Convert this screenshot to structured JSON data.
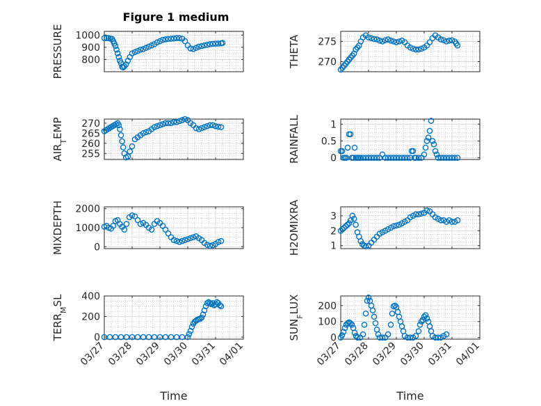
{
  "figure": {
    "title": "Figure 1 medium"
  },
  "colors": {
    "marker": "#0072BD",
    "axis": "#262626",
    "grid": "#b0b0b0"
  },
  "chart_data": [
    {
      "type": "scatter",
      "ylabel": "PRESSURE",
      "ylim": [
        700,
        1030
      ],
      "yticks": [
        800,
        900,
        1000
      ],
      "xlim": [
        0,
        5
      ],
      "xticks": [],
      "xlabel": "",
      "x": [
        0.0,
        0.08,
        0.15,
        0.22,
        0.28,
        0.32,
        0.36,
        0.4,
        0.44,
        0.48,
        0.52,
        0.56,
        0.6,
        0.64,
        0.68,
        0.72,
        0.78,
        0.85,
        0.92,
        1.0,
        1.1,
        1.2,
        1.3,
        1.4,
        1.5,
        1.6,
        1.7,
        1.8,
        1.9,
        2.0,
        2.1,
        2.2,
        2.3,
        2.4,
        2.5,
        2.6,
        2.7,
        2.8,
        2.9,
        3.0,
        3.1,
        3.2,
        3.3,
        3.4,
        3.5,
        3.6,
        3.7,
        3.8,
        3.9,
        4.0,
        4.1,
        4.2,
        4.25
      ],
      "y": [
        975,
        975,
        975,
        970,
        968,
        950,
        930,
        910,
        880,
        850,
        820,
        790,
        770,
        740,
        735,
        745,
        760,
        790,
        820,
        850,
        860,
        870,
        880,
        885,
        895,
        905,
        915,
        925,
        940,
        950,
        960,
        965,
        968,
        970,
        972,
        975,
        975,
        970,
        950,
        915,
        890,
        885,
        895,
        905,
        910,
        915,
        920,
        925,
        928,
        930,
        930,
        932,
        935
      ]
    },
    {
      "type": "scatter",
      "ylabel": "THETA",
      "ylim": [
        267.5,
        277.5
      ],
      "yticks": [
        270,
        275
      ],
      "xlim": [
        0,
        5
      ],
      "xticks": [],
      "xlabel": "",
      "x": [
        0.0,
        0.06,
        0.12,
        0.18,
        0.24,
        0.3,
        0.36,
        0.42,
        0.48,
        0.54,
        0.6,
        0.66,
        0.72,
        0.8,
        0.9,
        1.0,
        1.1,
        1.2,
        1.3,
        1.4,
        1.5,
        1.6,
        1.7,
        1.8,
        1.9,
        2.0,
        2.1,
        2.2,
        2.3,
        2.4,
        2.5,
        2.6,
        2.7,
        2.8,
        2.9,
        3.0,
        3.1,
        3.2,
        3.3,
        3.4,
        3.5,
        3.6,
        3.7,
        3.8,
        3.9,
        4.0,
        4.1,
        4.15,
        4.2
      ],
      "y": [
        268,
        268.5,
        269,
        269.5,
        270,
        270.5,
        271,
        271.5,
        272,
        273,
        273.5,
        274,
        275,
        276,
        276.5,
        276,
        275.8,
        275.6,
        275.5,
        275.2,
        275,
        275.3,
        275.5,
        275.2,
        275,
        274.8,
        275,
        275.2,
        274.8,
        274,
        273.5,
        273.2,
        273,
        273,
        273.2,
        273.5,
        274,
        274.8,
        275.8,
        276.5,
        276,
        275.5,
        275.3,
        275,
        275.2,
        275.3,
        275,
        274.5,
        274
      ]
    },
    {
      "type": "scatter",
      "ylabel": "AIR_TEMP",
      "ylim": [
        252,
        272
      ],
      "yticks": [
        255,
        260,
        265,
        270
      ],
      "xlim": [
        0,
        5
      ],
      "xticks": [],
      "xlabel": "",
      "x": [
        0.0,
        0.06,
        0.12,
        0.18,
        0.24,
        0.3,
        0.36,
        0.42,
        0.48,
        0.52,
        0.56,
        0.6,
        0.64,
        0.68,
        0.72,
        0.78,
        0.85,
        0.92,
        1.0,
        1.1,
        1.2,
        1.3,
        1.4,
        1.5,
        1.6,
        1.7,
        1.8,
        1.9,
        2.0,
        2.1,
        2.2,
        2.3,
        2.4,
        2.5,
        2.6,
        2.7,
        2.8,
        2.9,
        3.0,
        3.1,
        3.2,
        3.3,
        3.4,
        3.5,
        3.6,
        3.7,
        3.8,
        3.9,
        4.0,
        4.1,
        4.2
      ],
      "y": [
        266,
        266.5,
        267,
        267.5,
        268,
        268.5,
        269,
        269.5,
        270,
        269,
        267,
        264,
        261,
        258,
        255,
        253,
        253.5,
        256,
        258.5,
        262,
        263,
        264,
        265,
        265.5,
        266,
        267,
        268,
        268.5,
        269,
        269.5,
        270,
        270,
        270,
        270.5,
        270.5,
        271,
        271.5,
        272,
        271.5,
        270,
        269,
        267.5,
        267,
        267.5,
        268,
        268.5,
        269,
        269,
        268.5,
        268.2,
        268
      ]
    },
    {
      "type": "scatter",
      "ylabel": "RAINFALL",
      "ylim": [
        -0.05,
        1.15
      ],
      "yticks": [
        0,
        0.5,
        1
      ],
      "xlim": [
        0,
        5
      ],
      "xticks": [],
      "xlabel": "",
      "x": [
        0.0,
        0.05,
        0.1,
        0.15,
        0.2,
        0.25,
        0.3,
        0.35,
        0.4,
        0.45,
        0.5,
        0.55,
        0.6,
        0.65,
        0.7,
        0.8,
        0.9,
        1.0,
        1.1,
        1.2,
        1.3,
        1.4,
        1.5,
        1.6,
        1.7,
        1.8,
        1.9,
        2.0,
        2.1,
        2.2,
        2.3,
        2.4,
        2.5,
        2.55,
        2.6,
        2.65,
        2.7,
        2.8,
        2.9,
        3.0,
        3.05,
        3.1,
        3.15,
        3.2,
        3.25,
        3.3,
        3.35,
        3.4,
        3.45,
        3.5,
        3.6,
        3.7,
        3.8,
        3.9,
        4.0,
        4.1,
        4.2
      ],
      "y": [
        0.2,
        0.2,
        0.0,
        0.0,
        0.0,
        0.3,
        0.7,
        0.7,
        0.0,
        0.0,
        0.3,
        0.0,
        0.0,
        0.0,
        0.0,
        0.0,
        0.0,
        0.0,
        0.0,
        0.0,
        0.0,
        0.0,
        0.1,
        0.0,
        0.0,
        0.0,
        0.0,
        0.0,
        0.0,
        0.0,
        0.0,
        0.0,
        0.0,
        0.2,
        0.2,
        0.0,
        0.0,
        0.0,
        0.0,
        0.1,
        0.3,
        0.5,
        0.6,
        0.8,
        1.1,
        0.5,
        0.4,
        0.2,
        0.1,
        0.0,
        0.0,
        0.0,
        0.0,
        0.0,
        0.0,
        0.0,
        0.0
      ]
    },
    {
      "type": "scatter",
      "ylabel": "MIXDEPTH",
      "ylim": [
        -100,
        2100
      ],
      "yticks": [
        0,
        1000,
        2000
      ],
      "xlim": [
        0,
        5
      ],
      "xticks": [],
      "xlabel": "",
      "x": [
        0.0,
        0.08,
        0.16,
        0.24,
        0.32,
        0.4,
        0.48,
        0.56,
        0.64,
        0.72,
        0.8,
        0.9,
        1.0,
        1.1,
        1.2,
        1.3,
        1.4,
        1.5,
        1.6,
        1.7,
        1.8,
        1.9,
        2.0,
        2.1,
        2.2,
        2.3,
        2.4,
        2.5,
        2.6,
        2.7,
        2.8,
        2.9,
        3.0,
        3.1,
        3.2,
        3.3,
        3.4,
        3.5,
        3.6,
        3.7,
        3.8,
        3.9,
        4.0,
        4.1,
        4.2
      ],
      "y": [
        1050,
        1100,
        1000,
        950,
        1100,
        1350,
        1400,
        1200,
        1050,
        900,
        1200,
        1550,
        1650,
        1600,
        1400,
        1200,
        1250,
        1150,
        1000,
        900,
        1200,
        1350,
        1250,
        1100,
        900,
        700,
        500,
        350,
        300,
        250,
        300,
        350,
        400,
        450,
        500,
        550,
        450,
        350,
        200,
        100,
        50,
        80,
        150,
        250,
        300
      ]
    },
    {
      "type": "scatter",
      "ylabel": "H2OMIXRA",
      "ylim": [
        0.8,
        3.6
      ],
      "yticks": [
        1,
        2,
        3
      ],
      "xlim": [
        0,
        5
      ],
      "xticks": [],
      "xlabel": "",
      "x": [
        0.0,
        0.06,
        0.12,
        0.18,
        0.24,
        0.3,
        0.36,
        0.42,
        0.48,
        0.54,
        0.6,
        0.66,
        0.72,
        0.78,
        0.84,
        0.9,
        1.0,
        1.1,
        1.2,
        1.3,
        1.4,
        1.5,
        1.6,
        1.7,
        1.8,
        1.9,
        2.0,
        2.1,
        2.2,
        2.3,
        2.4,
        2.5,
        2.6,
        2.7,
        2.8,
        2.9,
        3.0,
        3.1,
        3.2,
        3.3,
        3.4,
        3.5,
        3.6,
        3.7,
        3.8,
        3.9,
        4.0,
        4.1,
        4.2
      ],
      "y": [
        2.0,
        2.1,
        2.2,
        2.3,
        2.4,
        2.5,
        2.7,
        3.0,
        2.8,
        2.4,
        1.9,
        1.6,
        1.3,
        1.1,
        1.0,
        0.95,
        1.0,
        1.2,
        1.4,
        1.6,
        1.8,
        1.9,
        2.0,
        2.1,
        2.2,
        2.3,
        2.35,
        2.4,
        2.5,
        2.6,
        2.7,
        2.9,
        3.0,
        3.1,
        3.1,
        3.15,
        3.2,
        3.35,
        3.3,
        3.1,
        2.9,
        2.8,
        2.7,
        2.7,
        2.6,
        2.7,
        2.6,
        2.6,
        2.7
      ]
    },
    {
      "type": "scatter",
      "ylabel": "TERR_MSL",
      "ylim": [
        -20,
        400
      ],
      "yticks": [
        0,
        200,
        400
      ],
      "xlim": [
        0,
        5
      ],
      "xticks": [
        "03/27",
        "03/28",
        "03/29",
        "03/30",
        "03/31",
        "04/01"
      ],
      "xlabel": "Time",
      "x": [
        0.0,
        0.2,
        0.4,
        0.6,
        0.8,
        1.0,
        1.2,
        1.4,
        1.6,
        1.8,
        2.0,
        2.2,
        2.4,
        2.6,
        2.8,
        3.0,
        3.05,
        3.1,
        3.15,
        3.2,
        3.25,
        3.3,
        3.35,
        3.4,
        3.45,
        3.5,
        3.55,
        3.6,
        3.65,
        3.7,
        3.75,
        3.8,
        3.85,
        3.9,
        3.95,
        4.0,
        4.05,
        4.1,
        4.15,
        4.2
      ],
      "y": [
        0,
        0,
        0,
        0,
        0,
        0,
        0,
        0,
        0,
        0,
        0,
        0,
        0,
        0,
        0,
        0,
        30,
        60,
        100,
        130,
        150,
        160,
        170,
        175,
        180,
        190,
        220,
        260,
        300,
        330,
        340,
        330,
        320,
        330,
        310,
        320,
        340,
        330,
        310,
        300
      ]
    },
    {
      "type": "scatter",
      "ylabel": "SUN_FLUX",
      "ylim": [
        -10,
        260
      ],
      "yticks": [
        0,
        100,
        200
      ],
      "xlim": [
        0,
        5
      ],
      "xticks": [
        "03/27",
        "03/28",
        "03/29",
        "03/30",
        "03/31",
        "04/01"
      ],
      "xlabel": "Time",
      "x": [
        0.0,
        0.05,
        0.1,
        0.15,
        0.2,
        0.25,
        0.3,
        0.35,
        0.4,
        0.45,
        0.5,
        0.55,
        0.6,
        0.7,
        0.8,
        0.85,
        0.9,
        0.95,
        1.0,
        1.05,
        1.1,
        1.15,
        1.2,
        1.25,
        1.3,
        1.35,
        1.4,
        1.5,
        1.6,
        1.7,
        1.8,
        1.85,
        1.9,
        1.95,
        2.0,
        2.05,
        2.1,
        2.15,
        2.2,
        2.25,
        2.3,
        2.4,
        2.5,
        2.6,
        2.7,
        2.8,
        2.85,
        2.9,
        2.95,
        3.0,
        3.05,
        3.1,
        3.15,
        3.2,
        3.25,
        3.3,
        3.4,
        3.5,
        3.6,
        3.7,
        3.8
      ],
      "y": [
        0,
        15,
        35,
        60,
        80,
        90,
        95,
        90,
        80,
        60,
        30,
        10,
        0,
        0,
        20,
        80,
        150,
        230,
        250,
        230,
        200,
        170,
        130,
        90,
        50,
        20,
        0,
        0,
        0,
        20,
        80,
        150,
        195,
        200,
        190,
        160,
        130,
        100,
        70,
        40,
        10,
        0,
        0,
        0,
        10,
        40,
        80,
        100,
        110,
        130,
        140,
        120,
        100,
        70,
        40,
        10,
        0,
        0,
        0,
        10,
        20
      ]
    }
  ]
}
